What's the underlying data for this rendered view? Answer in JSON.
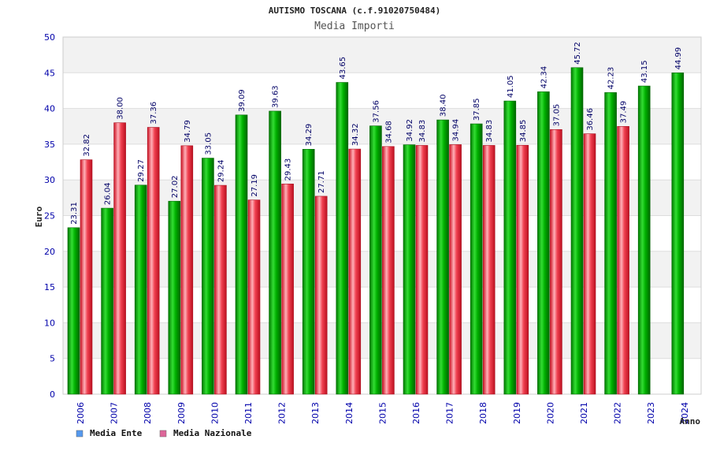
{
  "chart_data": {
    "type": "bar",
    "title": "AUTISMO TOSCANA (c.f.91020750484)",
    "subtitle": "Media Importi",
    "xlabel": "Anno",
    "ylabel": "Euro",
    "ylim": [
      0,
      50
    ],
    "yticks": [
      0,
      5,
      10,
      15,
      20,
      25,
      30,
      35,
      40,
      45,
      50
    ],
    "categories": [
      "2006",
      "2007",
      "2008",
      "2009",
      "2010",
      "2011",
      "2012",
      "2013",
      "2014",
      "2015",
      "2016",
      "2017",
      "2018",
      "2019",
      "2020",
      "2021",
      "2022",
      "2023",
      "2024"
    ],
    "series": [
      {
        "name": "Media Ente",
        "color": "#00aa00",
        "legend_color": "#5599ee",
        "values": [
          23.31,
          26.04,
          29.27,
          27.02,
          33.05,
          39.09,
          39.63,
          34.29,
          43.65,
          37.56,
          34.92,
          38.4,
          37.85,
          41.05,
          42.34,
          45.72,
          42.23,
          43.15,
          44.99
        ],
        "labels": [
          "23.31",
          "26.04",
          "29.27",
          "27.02",
          "33.05",
          "39.09",
          "39.63",
          "34.29",
          "43.65",
          "37.56",
          "34.92",
          "38.40",
          "37.85",
          "41.05",
          "42.34",
          "45.72",
          "42.23",
          "43.15",
          "44.99"
        ]
      },
      {
        "name": "Media Nazionale",
        "color": "#ee3344",
        "legend_color": "#dd6699",
        "values": [
          32.82,
          38.0,
          37.36,
          34.79,
          29.24,
          27.19,
          29.43,
          27.71,
          34.32,
          34.68,
          34.83,
          34.94,
          34.83,
          34.85,
          37.05,
          36.46,
          37.49,
          null,
          null
        ],
        "labels": [
          "32.82",
          "38.00",
          "37.36",
          "34.79",
          "29.24",
          "27.19",
          "29.43",
          "27.71",
          "34.32",
          "34.68",
          "34.83",
          "34.94",
          "34.83",
          "34.85",
          "37.05",
          "36.46",
          "37.49",
          null,
          null
        ]
      }
    ],
    "grid": true,
    "legend_position": "bottom-left"
  }
}
